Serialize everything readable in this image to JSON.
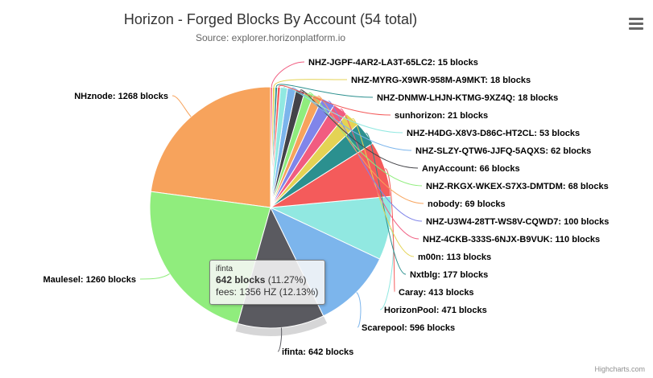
{
  "chart_data": {
    "type": "pie",
    "title": "Horizon - Forged Blocks By Account (54 total)",
    "subtitle": "Source: explorer.horizonplatform.io",
    "value_unit": "blocks",
    "slices": [
      {
        "name": "NHznode",
        "value": 1268,
        "color": "#f7a35c"
      },
      {
        "name": "Maulesel",
        "value": 1260,
        "color": "#90ed7d"
      },
      {
        "name": "ifinta",
        "value": 642,
        "color": "#5a5a60"
      },
      {
        "name": "Scarepool",
        "value": 596,
        "color": "#7cb5ec"
      },
      {
        "name": "HorizonPool",
        "value": 471,
        "color": "#91e8e1"
      },
      {
        "name": "Caray",
        "value": 413,
        "color": "#f45b5b"
      },
      {
        "name": "Nxtblg",
        "value": 177,
        "color": "#2b908f"
      },
      {
        "name": "m00n",
        "value": 113,
        "color": "#e4d354"
      },
      {
        "name": "NHZ-4CKB-333S-6NJX-B9VUK",
        "value": 110,
        "color": "#f15c80"
      },
      {
        "name": "NHZ-U3W4-28TT-WS8V-CQWD7",
        "value": 100,
        "color": "#8085e9"
      },
      {
        "name": "nobody",
        "value": 69,
        "color": "#f7a35c"
      },
      {
        "name": "NHZ-RKGX-WKEX-S7X3-DMTDM",
        "value": 68,
        "color": "#90ed7d"
      },
      {
        "name": "AnyAccount",
        "value": 66,
        "color": "#434348"
      },
      {
        "name": "NHZ-SLZY-QTW6-JJFQ-5AQXS",
        "value": 62,
        "color": "#7cb5ec"
      },
      {
        "name": "NHZ-H4DG-X8V3-D86C-HT2CL",
        "value": 53,
        "color": "#91e8e1"
      },
      {
        "name": "sunhorizon",
        "value": 21,
        "color": "#f45b5b"
      },
      {
        "name": "NHZ-DNMW-LHJN-KTMG-9XZ4Q",
        "value": 18,
        "color": "#2b908f"
      },
      {
        "name": "NHZ-MYRG-X9WR-958M-A9MKT",
        "value": 18,
        "color": "#e4d354"
      },
      {
        "name": "NHZ-JGPF-4AR2-LA3T-65LC2",
        "value": 15,
        "color": "#f15c80"
      }
    ],
    "hovered": "ifinta",
    "tooltip": {
      "name": "ifinta",
      "value_text": "642 blocks",
      "percent_text": "(11.27%)",
      "fees_text": "fees: 1356 HZ (12.13%)"
    }
  },
  "ui": {
    "menu_icon": "hamburger-menu-icon",
    "credits": "Highcharts.com"
  }
}
